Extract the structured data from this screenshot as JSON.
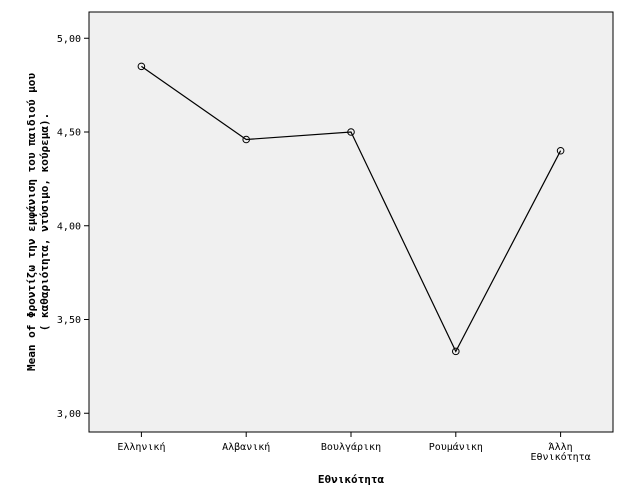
{
  "chart_data": {
    "type": "line",
    "categories": [
      [
        "Ελληνική"
      ],
      [
        "Αλβανική"
      ],
      [
        "Βουλγάρικη"
      ],
      [
        "Ρουμάνικη"
      ],
      [
        "Άλλη",
        "Εθνικότητα"
      ]
    ],
    "values": [
      4.85,
      4.46,
      4.5,
      3.33,
      4.4
    ],
    "xlabel": "Εθνικότητα",
    "ylabel_lines": [
      "Mean of Φροντίζω την εμφάνιση του παιδιού μου",
      "( καθαριότητα, ντύσιμο, κούρεμα)."
    ],
    "ylim": [
      2.9,
      5.14
    ],
    "yticks": [
      3.0,
      3.5,
      4.0,
      4.5,
      5.0
    ],
    "ytick_labels": [
      "3,00",
      "3,50",
      "4,00",
      "4,50",
      "5,00"
    ],
    "grid": false,
    "plot_background": "#f0f0f0",
    "line_color": "#000000",
    "marker": "open-circle"
  }
}
